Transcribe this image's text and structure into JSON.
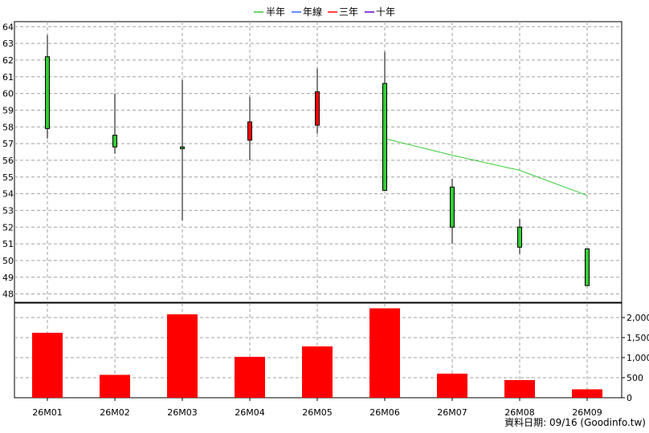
{
  "legend": [
    {
      "label": "半年",
      "color": "#33cc33"
    },
    {
      "label": "年線",
      "color": "#3366ff"
    },
    {
      "label": "三年",
      "color": "#ff0000"
    },
    {
      "label": "十年",
      "color": "#6600cc"
    }
  ],
  "source_note": "資料日期: 09/16  (Goodinfo.tw)",
  "colors": {
    "up": "#ff0000",
    "down": "#33cc33",
    "volume": "#ff0000",
    "ma_half_year": "#33cc33",
    "grid": "#a0a0a0"
  },
  "chart_data": [
    {
      "type": "candlestick",
      "categories": [
        "26M01",
        "26M02",
        "26M03",
        "26M04",
        "26M05",
        "26M06",
        "26M07",
        "26M08",
        "26M09"
      ],
      "ohlc": [
        {
          "open": 62.2,
          "high": 63.5,
          "low": 57.3,
          "close": 57.9
        },
        {
          "open": 57.5,
          "high": 60.0,
          "low": 56.4,
          "close": 56.8
        },
        {
          "open": 56.8,
          "high": 60.8,
          "low": 52.4,
          "close": 56.7
        },
        {
          "open": 57.2,
          "high": 59.8,
          "low": 56.0,
          "close": 58.3
        },
        {
          "open": 58.1,
          "high": 61.5,
          "low": 57.6,
          "close": 60.1
        },
        {
          "open": 60.6,
          "high": 62.5,
          "low": 54.2,
          "close": 54.2
        },
        {
          "open": 54.4,
          "high": 54.9,
          "low": 51.0,
          "close": 52.0
        },
        {
          "open": 52.0,
          "high": 52.5,
          "low": 50.4,
          "close": 50.8
        },
        {
          "open": 50.7,
          "high": 50.7,
          "low": 48.5,
          "close": 48.5
        }
      ],
      "series": [
        {
          "name": "半年",
          "x": [
            "26M06",
            "26M07",
            "26M08",
            "26M09"
          ],
          "values": [
            57.3,
            56.3,
            55.4,
            53.9
          ]
        }
      ],
      "yticks": [
        48,
        49,
        50,
        51,
        52,
        53,
        54,
        55,
        56,
        57,
        58,
        59,
        60,
        61,
        62,
        63,
        64
      ],
      "ylim": [
        47.5,
        64.3
      ],
      "grid": true,
      "legend_position": "top-center"
    },
    {
      "type": "bar",
      "categories": [
        "26M01",
        "26M02",
        "26M03",
        "26M04",
        "26M05",
        "26M06",
        "26M07",
        "26M08",
        "26M09"
      ],
      "values": [
        1620,
        570,
        2080,
        1020,
        1280,
        2230,
        600,
        440,
        210
      ],
      "yticks": [
        "0",
        "500",
        "1,000",
        "1,500",
        "2,000"
      ],
      "ytick_values": [
        0,
        500,
        1000,
        1500,
        2000
      ],
      "ylim": [
        0,
        2360
      ],
      "grid": true
    }
  ]
}
